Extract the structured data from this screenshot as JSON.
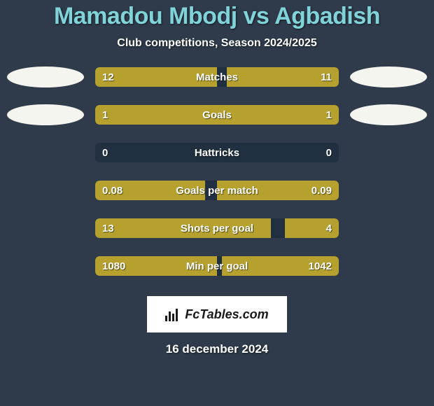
{
  "colors": {
    "background": "#2f3b4a",
    "title": "#7fd3d9",
    "subtitle": "#ffffff",
    "text": "#ffffff",
    "bar_track": "#203040",
    "bar_accent": "#b7a12e",
    "ellipse_left": "#f5f5ef",
    "ellipse_right": "#f5f5ef",
    "brand_bg": "#ffffff",
    "brand_text": "#1a1a1a",
    "date_text": "#ffffff"
  },
  "title": "Mamadou Mbodj vs Agbadish",
  "subtitle": "Club competitions, Season 2024/2025",
  "brand": "FcTables.com",
  "date": "16 december 2024",
  "rows": [
    {
      "label": "Matches",
      "left_value": "12",
      "right_value": "11",
      "left_raw": 12,
      "right_raw": 11,
      "left_fill_pct": 50,
      "right_fill_pct": 46,
      "ellipse_left": true,
      "ellipse_right": true
    },
    {
      "label": "Goals",
      "left_value": "1",
      "right_value": "1",
      "left_raw": 1,
      "right_raw": 1,
      "left_fill_pct": 50,
      "right_fill_pct": 50,
      "ellipse_left": true,
      "ellipse_right": true
    },
    {
      "label": "Hattricks",
      "left_value": "0",
      "right_value": "0",
      "left_raw": 0,
      "right_raw": 0,
      "left_fill_pct": 0,
      "right_fill_pct": 0,
      "ellipse_left": false,
      "ellipse_right": false
    },
    {
      "label": "Goals per match",
      "left_value": "0.08",
      "right_value": "0.09",
      "left_raw": 0.08,
      "right_raw": 0.09,
      "left_fill_pct": 45,
      "right_fill_pct": 50,
      "ellipse_left": false,
      "ellipse_right": false
    },
    {
      "label": "Shots per goal",
      "left_value": "13",
      "right_value": "4",
      "left_raw": 13,
      "right_raw": 4,
      "left_fill_pct": 72,
      "right_fill_pct": 22,
      "ellipse_left": false,
      "ellipse_right": false
    },
    {
      "label": "Min per goal",
      "left_value": "1080",
      "right_value": "1042",
      "left_raw": 1080,
      "right_raw": 1042,
      "left_fill_pct": 50,
      "right_fill_pct": 48,
      "ellipse_left": false,
      "ellipse_right": false
    }
  ]
}
